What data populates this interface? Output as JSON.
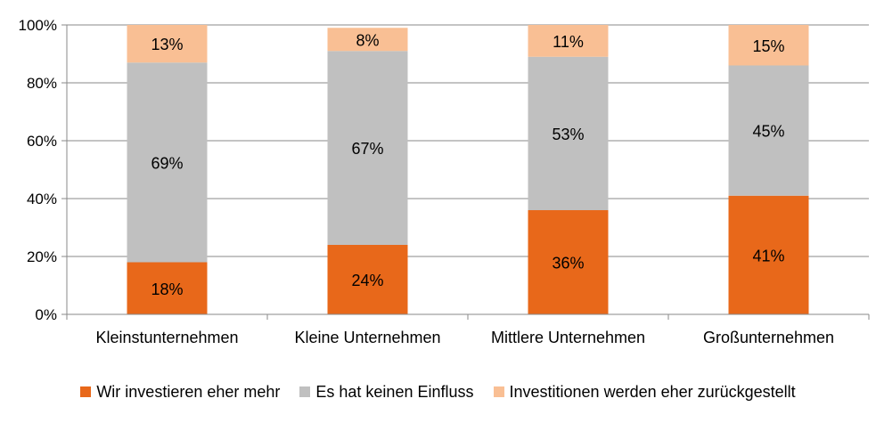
{
  "chart_data": {
    "type": "bar",
    "stacked": true,
    "categories": [
      "Kleinstunternehmen",
      "Kleine Unternehmen",
      "Mittlere Unternehmen",
      "Großunternehmen"
    ],
    "series": [
      {
        "name": "Wir investieren eher mehr",
        "color": "#E8681A",
        "values": [
          18,
          24,
          36,
          41
        ],
        "labels": [
          "18%",
          "24%",
          "36%",
          "41%"
        ]
      },
      {
        "name": "Es hat keinen Einfluss",
        "color": "#C0C0C0",
        "values": [
          69,
          67,
          53,
          45
        ],
        "labels": [
          "69%",
          "67%",
          "53%",
          "45%"
        ]
      },
      {
        "name": "Investitionen werden eher zurückgestellt",
        "color": "#F9BF94",
        "values": [
          13,
          8,
          11,
          15
        ],
        "labels": [
          "13%",
          "8%",
          "11%",
          "15%"
        ]
      }
    ],
    "ylim": [
      0,
      100
    ],
    "yticks": [
      "0%",
      "20%",
      "40%",
      "60%",
      "80%",
      "100%"
    ],
    "grid": true,
    "legend_position": "bottom"
  }
}
